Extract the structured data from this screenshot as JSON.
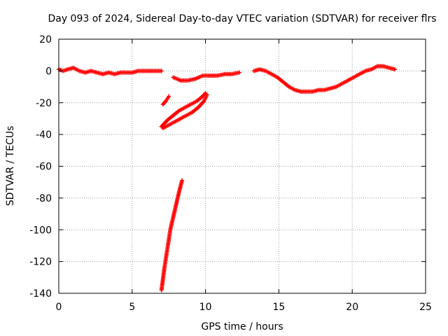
{
  "chart_data": {
    "type": "scatter",
    "title": "Day 093 of 2024, Sidereal Day-to-day VTEC variation (SDTVAR) for receiver flrs",
    "xlabel": "GPS time / hours",
    "ylabel": "SDTVAR / TECUs",
    "xlim": [
      0,
      25
    ],
    "ylim": [
      -140,
      20
    ],
    "xticks": [
      "0",
      "5",
      "10",
      "15",
      "20",
      "25"
    ],
    "yticks": [
      "20",
      "0",
      "-20",
      "-40",
      "-60",
      "-80",
      "-100",
      "-120",
      "-140"
    ],
    "grid": true,
    "legend": "none",
    "marker": "plus",
    "color": "#ff0000",
    "series": [
      {
        "segments": [
          {
            "x": [
              0.0,
              0.3,
              0.6,
              1.0,
              1.4,
              1.8,
              2.2,
              2.6,
              3.0,
              3.4,
              3.8,
              4.2,
              4.6,
              5.0,
              5.4,
              5.8,
              6.2,
              6.6,
              7.0
            ],
            "y": [
              1,
              0,
              1,
              2,
              0,
              -1,
              0,
              -1,
              -2,
              -1,
              -2,
              -1,
              -1,
              -1,
              0,
              0,
              0,
              0,
              0
            ]
          },
          {
            "x": [
              7.1,
              7.3,
              7.5
            ],
            "y": [
              -21,
              -19,
              -16
            ]
          },
          {
            "x": [
              7.0,
              7.4,
              7.8,
              8.2,
              8.6,
              9.0,
              9.4,
              9.8,
              10.0
            ],
            "y": [
              -35,
              -31,
              -28,
              -25,
              -23,
              -21,
              -19,
              -16,
              -14
            ]
          },
          {
            "x": [
              7.1,
              7.5,
              7.9,
              8.3,
              8.7,
              9.1,
              9.5,
              9.9,
              10.1
            ],
            "y": [
              -36,
              -34,
              -32,
              -30,
              -28,
              -26,
              -23,
              -19,
              -15
            ]
          },
          {
            "x": [
              7.0,
              7.2,
              7.4,
              7.6,
              7.8,
              8.0,
              8.2,
              8.4
            ],
            "y": [
              -138,
              -124,
              -112,
              -100,
              -92,
              -84,
              -76,
              -69
            ]
          },
          {
            "x": [
              7.8,
              8.3,
              8.8,
              9.3,
              9.8,
              10.3,
              10.8,
              11.3,
              11.8,
              12.3
            ],
            "y": [
              -4,
              -6,
              -6,
              -5,
              -3,
              -3,
              -3,
              -2,
              -2,
              -1
            ]
          },
          {
            "x": [
              13.3,
              13.7,
              14.1,
              14.5,
              14.9,
              15.3,
              15.7,
              16.1,
              16.5,
              16.9,
              17.3,
              17.7,
              18.1,
              18.5,
              18.9,
              19.3,
              19.7,
              20.1,
              20.5,
              20.9,
              21.3,
              21.7,
              22.1,
              22.5,
              22.9
            ],
            "y": [
              0,
              1,
              0,
              -2,
              -4,
              -7,
              -10,
              -12,
              -13,
              -13,
              -13,
              -12,
              -12,
              -11,
              -10,
              -8,
              -6,
              -4,
              -2,
              0,
              1,
              3,
              3,
              2,
              1
            ]
          }
        ]
      }
    ]
  }
}
